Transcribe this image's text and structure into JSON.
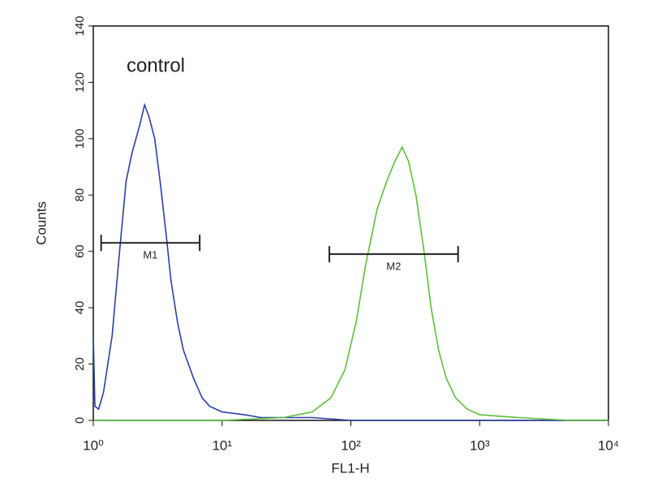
{
  "chart_data": {
    "type": "line",
    "xlabel": "FL1-H",
    "ylabel": "Counts",
    "annotation": "control",
    "xscale": "log",
    "xlim": [
      1,
      10000
    ],
    "xticks": [
      {
        "value": 1,
        "label": "10⁰"
      },
      {
        "value": 10,
        "label": "10¹"
      },
      {
        "value": 100,
        "label": "10²"
      },
      {
        "value": 1000,
        "label": "10³"
      },
      {
        "value": 10000,
        "label": "10⁴"
      }
    ],
    "ylim": [
      0,
      140
    ],
    "yticks": [
      0,
      20,
      40,
      60,
      80,
      100,
      120,
      140
    ],
    "series": [
      {
        "color": "#2a3fa8",
        "x": [
          1,
          1.03,
          1.1,
          1.2,
          1.4,
          1.6,
          1.8,
          2.0,
          2.3,
          2.5,
          2.7,
          3.0,
          3.3,
          3.7,
          4.0,
          4.5,
          5,
          6,
          7,
          8,
          10,
          15,
          20,
          50,
          100,
          1000,
          10000
        ],
        "values": [
          30,
          5,
          4,
          10,
          30,
          60,
          85,
          95,
          105,
          112,
          108,
          100,
          85,
          65,
          50,
          35,
          25,
          15,
          8,
          5,
          3,
          2,
          1,
          1,
          0,
          0,
          0
        ]
      },
      {
        "color": "#5cc03a",
        "x": [
          1,
          10,
          30,
          50,
          70,
          90,
          110,
          130,
          160,
          190,
          220,
          250,
          280,
          320,
          370,
          420,
          480,
          550,
          650,
          800,
          1000,
          2000,
          5000,
          10000
        ],
        "values": [
          0,
          0,
          1,
          3,
          8,
          18,
          35,
          55,
          75,
          85,
          92,
          97,
          92,
          80,
          60,
          40,
          25,
          15,
          8,
          4,
          2,
          1,
          0,
          0
        ]
      }
    ],
    "markers": [
      {
        "label": "M1",
        "range": [
          1.15,
          6.7
        ],
        "y": 63
      },
      {
        "label": "M2",
        "range": [
          68,
          680
        ],
        "y": 59
      }
    ]
  }
}
